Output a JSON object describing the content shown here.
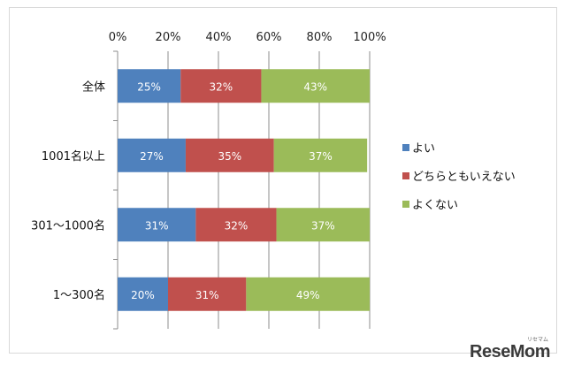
{
  "chart_data": {
    "type": "bar",
    "orientation": "horizontal",
    "stacked": true,
    "percent": true,
    "x_ticks": [
      "0%",
      "20%",
      "40%",
      "60%",
      "80%",
      "100%"
    ],
    "xlim": [
      0,
      100
    ],
    "grid": true,
    "categories": [
      "全体",
      "1001名以上",
      "301～1000名",
      "1～300名"
    ],
    "series": [
      {
        "name": "よい",
        "values": [
          25,
          27,
          31,
          20
        ],
        "labels": [
          "25%",
          "27%",
          "31%",
          "20%"
        ],
        "color": "#4f81bd"
      },
      {
        "name": "どちらともいえない",
        "values": [
          32,
          35,
          32,
          31
        ],
        "labels": [
          "32%",
          "35%",
          "32%",
          "31%"
        ],
        "color": "#c0504d"
      },
      {
        "name": "よくない",
        "values": [
          43,
          37,
          37,
          49
        ],
        "labels": [
          "43%",
          "37%",
          "37%",
          "49%"
        ],
        "color": "#9bbb59"
      }
    ],
    "legend_position": "right"
  },
  "watermark": {
    "brand": "ReseMom",
    "sub": "リセマム"
  }
}
